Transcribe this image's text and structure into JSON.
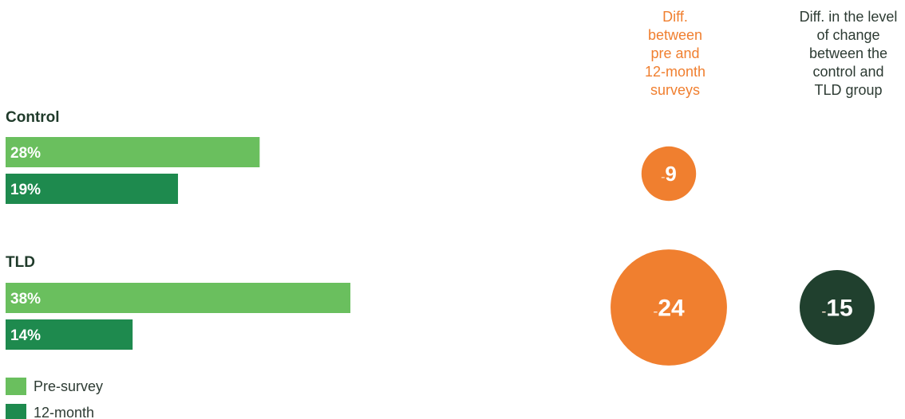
{
  "chart_data": {
    "type": "bar",
    "orientation": "horizontal",
    "groups": [
      {
        "label": "Control",
        "bars": [
          {
            "series": "Pre-survey",
            "value": 28,
            "label": "28%"
          },
          {
            "series": "12-month",
            "value": 19,
            "label": "19%"
          }
        ],
        "diff_pre_12month": {
          "value": -9,
          "label": "-9"
        },
        "diff_control_vs_tld": null
      },
      {
        "label": "TLD",
        "bars": [
          {
            "series": "Pre-survey",
            "value": 38,
            "label": "38%"
          },
          {
            "series": "12-month",
            "value": 14,
            "label": "14%"
          }
        ],
        "diff_pre_12month": {
          "value": -24,
          "label": "-24"
        },
        "diff_control_vs_tld": {
          "value": -15,
          "label": "-15"
        }
      }
    ],
    "legend": [
      {
        "name": "Pre-survey",
        "color": "#6abf5e"
      },
      {
        "name": "12-month",
        "color": "#1e8a4e"
      }
    ],
    "legend_position": "bottom-left",
    "column_headers": {
      "diff_pre_12month": [
        "Diff.",
        "between",
        "pre and",
        "12-month",
        "surveys"
      ],
      "diff_control_vs_tld": [
        "Diff. in the level",
        "of change",
        "between the",
        "control and",
        "TLD group"
      ]
    },
    "colors": {
      "pre_survey": "#6abf5e",
      "twelve_month": "#1e8a4e",
      "diff_circle": "#f07f2f",
      "level_circle": "#20402e",
      "group_label": "#1f3a2a",
      "diff_header": "#f07f2f",
      "level_header": "#2d3b33"
    }
  }
}
